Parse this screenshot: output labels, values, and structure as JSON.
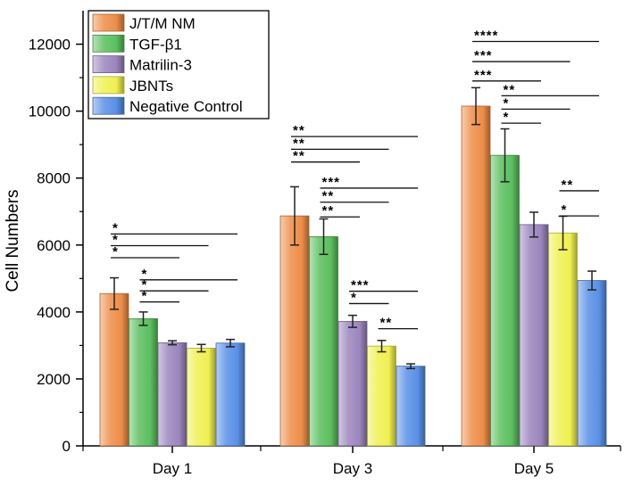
{
  "chart_data": {
    "type": "bar",
    "title": "",
    "xlabel": "",
    "ylabel": "Cell Numbers",
    "ylim": [
      0,
      13000
    ],
    "yticks": [
      0,
      2000,
      4000,
      6000,
      8000,
      10000,
      12000
    ],
    "grid": false,
    "legend_position": "top-left",
    "categories": [
      "Day 1",
      "Day 3",
      "Day 5"
    ],
    "series": [
      {
        "name": "J/T/M NM",
        "color": "#ee8d49",
        "values": [
          4550,
          6870,
          10150
        ],
        "errors": [
          470,
          870,
          550
        ]
      },
      {
        "name": "TGF-β1",
        "color": "#5cbf5e",
        "values": [
          3800,
          6250,
          8680
        ],
        "errors": [
          200,
          530,
          790
        ]
      },
      {
        "name": "Matrilin-3",
        "color": "#9b85bd",
        "values": [
          3080,
          3720,
          6610
        ],
        "errors": [
          60,
          180,
          370
        ]
      },
      {
        "name": "JBNTs",
        "color": "#f0f052",
        "values": [
          2920,
          2980,
          6360
        ],
        "errors": [
          110,
          170,
          500
        ]
      },
      {
        "name": "Negative Control",
        "color": "#5a90e6",
        "values": [
          3070,
          2380,
          4940
        ],
        "errors": [
          110,
          70,
          280
        ]
      }
    ],
    "significance": [
      {
        "category": 0,
        "from": 0,
        "to": 4,
        "label": "*",
        "level": 6330
      },
      {
        "category": 0,
        "from": 0,
        "to": 3,
        "label": "*",
        "level": 5980
      },
      {
        "category": 0,
        "from": 0,
        "to": 2,
        "label": "*",
        "level": 5620
      },
      {
        "category": 0,
        "from": 1,
        "to": 4,
        "label": "*",
        "level": 4960
      },
      {
        "category": 0,
        "from": 1,
        "to": 3,
        "label": "*",
        "level": 4630
      },
      {
        "category": 0,
        "from": 1,
        "to": 2,
        "label": "*",
        "level": 4300
      },
      {
        "category": 1,
        "from": 0,
        "to": 4,
        "label": "**",
        "level": 9240
      },
      {
        "category": 1,
        "from": 0,
        "to": 3,
        "label": "**",
        "level": 8860
      },
      {
        "category": 1,
        "from": 0,
        "to": 2,
        "label": "**",
        "level": 8480
      },
      {
        "category": 1,
        "from": 1,
        "to": 4,
        "label": "***",
        "level": 7700
      },
      {
        "category": 1,
        "from": 1,
        "to": 3,
        "label": "**",
        "level": 7280
      },
      {
        "category": 1,
        "from": 1,
        "to": 2,
        "label": "**",
        "level": 6840
      },
      {
        "category": 1,
        "from": 2,
        "to": 4,
        "label": "***",
        "level": 4620
      },
      {
        "category": 1,
        "from": 2,
        "to": 3,
        "label": "*",
        "level": 4250
      },
      {
        "category": 1,
        "from": 3,
        "to": 4,
        "label": "**",
        "level": 3500
      },
      {
        "category": 2,
        "from": 0,
        "to": 4,
        "label": "****",
        "level": 12080
      },
      {
        "category": 2,
        "from": 0,
        "to": 3,
        "label": "***",
        "level": 11480
      },
      {
        "category": 2,
        "from": 0,
        "to": 2,
        "label": "***",
        "level": 10900
      },
      {
        "category": 2,
        "from": 1,
        "to": 4,
        "label": "**",
        "level": 10460
      },
      {
        "category": 2,
        "from": 1,
        "to": 3,
        "label": "*",
        "level": 10060
      },
      {
        "category": 2,
        "from": 1,
        "to": 2,
        "label": "*",
        "level": 9640
      },
      {
        "category": 2,
        "from": 3,
        "to": 4,
        "label": "**",
        "level": 7620
      },
      {
        "category": 2,
        "from": 3,
        "to": 4,
        "label": "*",
        "level": 6870
      }
    ]
  }
}
